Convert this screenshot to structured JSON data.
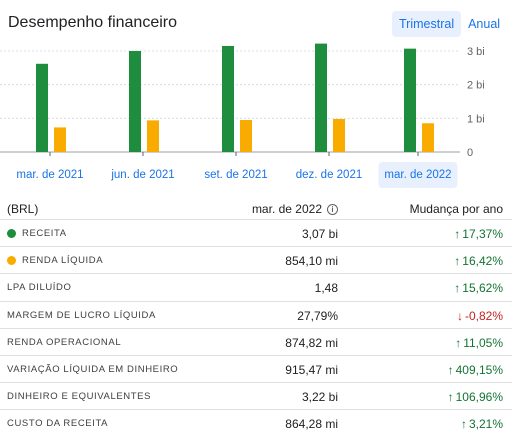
{
  "header": {
    "title": "Desempenho financeiro",
    "toggle": [
      {
        "label": "Trimestral",
        "active": true
      },
      {
        "label": "Anual",
        "active": false
      }
    ]
  },
  "colors": {
    "receita": "#1e8e3e",
    "renda": "#f9ab00",
    "grid": "#dadce0",
    "link": "#1a73e8"
  },
  "chart_data": {
    "type": "bar",
    "categories": [
      "mar. de 2021",
      "jun. de 2021",
      "set. de 2021",
      "dez. de 2021",
      "mar. de 2022"
    ],
    "series": [
      {
        "name": "Receita",
        "color": "#1e8e3e",
        "values": [
          2.62,
          3.0,
          3.15,
          3.22,
          3.07
        ]
      },
      {
        "name": "Renda líquida",
        "color": "#f9ab00",
        "values": [
          0.73,
          0.94,
          0.95,
          0.98,
          0.854
        ]
      }
    ],
    "ylim": [
      0,
      3.3
    ],
    "yticks": [
      {
        "value": 0,
        "label": "0"
      },
      {
        "value": 1,
        "label": "1 bi"
      },
      {
        "value": 2,
        "label": "2 bi"
      },
      {
        "value": 3,
        "label": "3 bi"
      }
    ],
    "selected_index": 4
  },
  "table": {
    "col_currency": "(BRL)",
    "col_period": "mar. de 2022",
    "col_change": "Mudança por ano",
    "rows": [
      {
        "label": "Receita",
        "value": "3,07 bi",
        "change": "17,37%",
        "dir": "up",
        "dot": "#1e8e3e"
      },
      {
        "label": "Renda líquida",
        "value": "854,10 mi",
        "change": "16,42%",
        "dir": "up",
        "dot": "#f9ab00"
      },
      {
        "label": "LPA diluído",
        "value": "1,48",
        "change": "15,62%",
        "dir": "up",
        "dot": ""
      },
      {
        "label": "Margem de lucro líquida",
        "value": "27,79%",
        "change": "-0,82%",
        "dir": "down",
        "dot": ""
      },
      {
        "label": "Renda operacional",
        "value": "874,82 mi",
        "change": "11,05%",
        "dir": "up",
        "dot": ""
      },
      {
        "label": "Variação líquida em dinheiro",
        "value": "915,47 mi",
        "change": "409,15%",
        "dir": "up",
        "dot": ""
      },
      {
        "label": "Dinheiro e equivalentes",
        "value": "3,22 bi",
        "change": "106,96%",
        "dir": "up",
        "dot": ""
      },
      {
        "label": "Custo da receita",
        "value": "864,28 mi",
        "change": "3,21%",
        "dir": "up",
        "dot": ""
      }
    ]
  }
}
